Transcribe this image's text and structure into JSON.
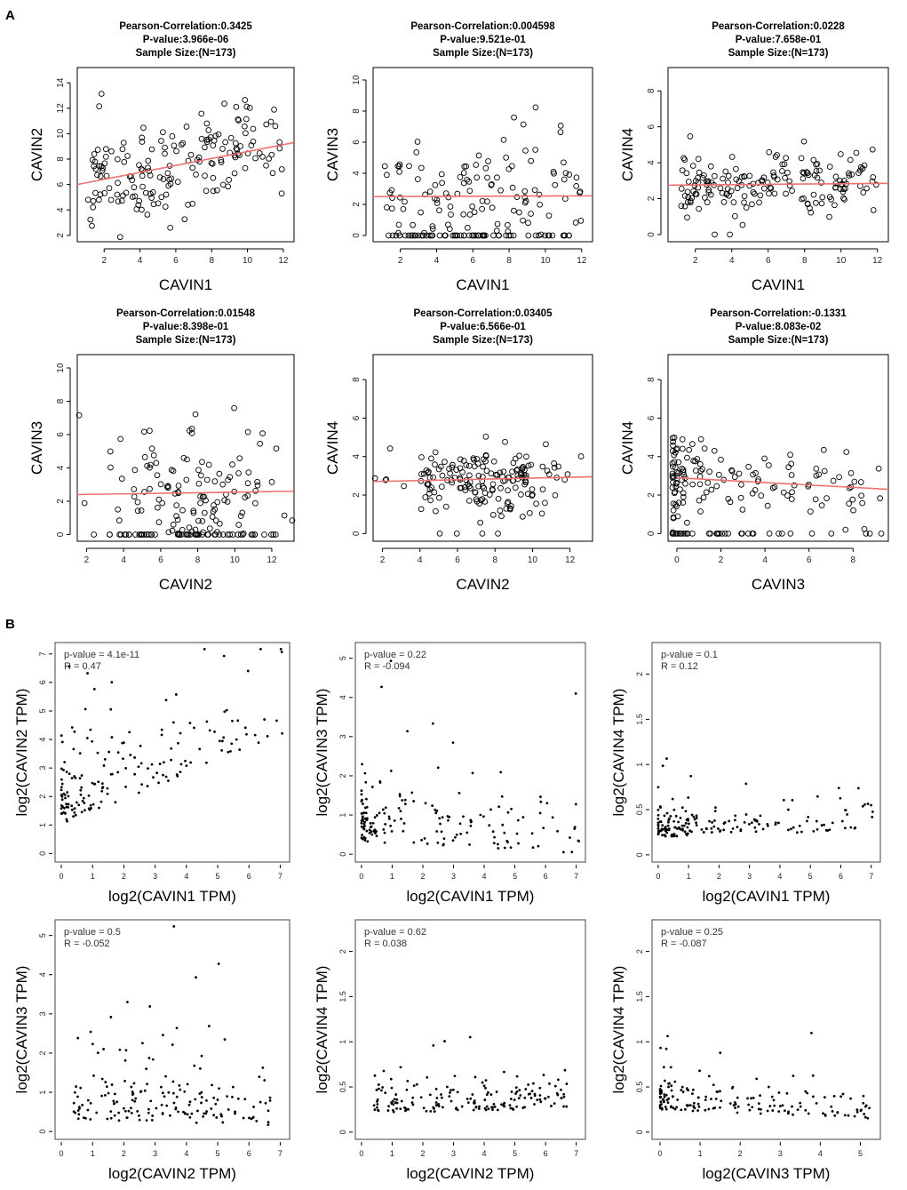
{
  "panel_labels": {
    "a": "A",
    "b": "B"
  },
  "colors": {
    "fit_line": "#f07070",
    "ink": "#000000",
    "box": "#444444"
  },
  "chart_data": [
    {
      "type": "scatter",
      "panel": "A",
      "style": "r-base",
      "header": [
        "Pearson-Correlation:0.3425",
        "P-value:3.966e-06",
        "Sample Size:(N=173)"
      ],
      "xlabel": "CAVIN1",
      "ylabel": "CAVIN2",
      "xlim": [
        0.5,
        12.6
      ],
      "ylim": [
        1.5,
        15.2
      ],
      "xticks": [
        2,
        4,
        6,
        8,
        10,
        12
      ],
      "yticks": [
        2,
        4,
        6,
        8,
        10,
        12,
        14
      ],
      "n_points": 173,
      "seed": 11,
      "slope": 0.27,
      "spread": 1.9,
      "zero_frac": 0,
      "xmode": "uniform",
      "fit": {
        "x0": 0.5,
        "y0": 6.0,
        "x1": 12.6,
        "y1": 9.3
      },
      "grid": false
    },
    {
      "type": "scatter",
      "panel": "A",
      "style": "r-base",
      "header": [
        "Pearson-Correlation:0.004598",
        "P-value:9.521e-01",
        "Sample Size:(N=173)"
      ],
      "xlabel": "CAVIN1",
      "ylabel": "CAVIN3",
      "xlim": [
        0.5,
        12.6
      ],
      "ylim": [
        -0.4,
        10.8
      ],
      "xticks": [
        2,
        4,
        6,
        8,
        10,
        12
      ],
      "yticks": [
        0,
        2,
        4,
        6,
        8,
        10
      ],
      "n_points": 173,
      "seed": 23,
      "slope": 0.0,
      "spread": 2.2,
      "zero_frac": 0.18,
      "xmode": "uniform",
      "fit": {
        "x0": 0.5,
        "y0": 2.5,
        "x1": 12.6,
        "y1": 2.55
      },
      "grid": false
    },
    {
      "type": "scatter",
      "panel": "A",
      "style": "r-base",
      "header": [
        "Pearson-Correlation:0.0228",
        "P-value:7.658e-01",
        "Sample Size:(N=173)"
      ],
      "xlabel": "CAVIN1",
      "ylabel": "CAVIN4",
      "xlim": [
        0.5,
        12.6
      ],
      "ylim": [
        -0.4,
        9.3
      ],
      "xticks": [
        2,
        4,
        6,
        8,
        10,
        12
      ],
      "yticks": [
        0,
        2,
        4,
        6,
        8
      ],
      "n_points": 173,
      "seed": 37,
      "slope": 0.01,
      "spread": 0.9,
      "zero_frac": 0.02,
      "xmode": "uniform",
      "fit": {
        "x0": 0.5,
        "y0": 2.75,
        "x1": 12.6,
        "y1": 2.85
      },
      "grid": false
    },
    {
      "type": "scatter",
      "panel": "A",
      "style": "r-base",
      "header": [
        "Pearson-Correlation:0.01548",
        "P-value:8.398e-01",
        "Sample Size:(N=173)"
      ],
      "xlabel": "CAVIN2",
      "ylabel": "CAVIN3",
      "xlim": [
        1.5,
        13.2
      ],
      "ylim": [
        -0.4,
        10.8
      ],
      "xticks": [
        2,
        4,
        6,
        8,
        10,
        12
      ],
      "yticks": [
        0,
        2,
        4,
        6,
        8,
        10
      ],
      "n_points": 173,
      "seed": 41,
      "slope": 0.01,
      "spread": 2.2,
      "zero_frac": 0.18,
      "xmode": "centered",
      "fit": {
        "x0": 1.5,
        "y0": 2.4,
        "x1": 13.2,
        "y1": 2.6
      },
      "grid": false
    },
    {
      "type": "scatter",
      "panel": "A",
      "style": "r-base",
      "header": [
        "Pearson-Correlation:0.03405",
        "P-value:6.566e-01",
        "Sample Size:(N=173)"
      ],
      "xlabel": "CAVIN2",
      "ylabel": "CAVIN4",
      "xlim": [
        1.5,
        13.2
      ],
      "ylim": [
        -0.4,
        9.3
      ],
      "xticks": [
        2,
        4,
        6,
        8,
        10,
        12
      ],
      "yticks": [
        0,
        2,
        4,
        6,
        8
      ],
      "n_points": 173,
      "seed": 53,
      "slope": 0.02,
      "spread": 0.9,
      "zero_frac": 0.02,
      "xmode": "centered",
      "fit": {
        "x0": 1.5,
        "y0": 2.7,
        "x1": 13.2,
        "y1": 2.95
      },
      "grid": false
    },
    {
      "type": "scatter",
      "panel": "A",
      "style": "r-base",
      "header": [
        "Pearson-Correlation:-0.1331",
        "P-value:8.083e-02",
        "Sample Size:(N=173)"
      ],
      "xlabel": "CAVIN3",
      "ylabel": "CAVIN4",
      "xlim": [
        -0.4,
        9.6
      ],
      "ylim": [
        -0.4,
        9.3
      ],
      "xticks": [
        0,
        2,
        4,
        6,
        8
      ],
      "yticks": [
        0,
        2,
        4,
        6,
        8
      ],
      "n_points": 173,
      "seed": 67,
      "slope": -0.07,
      "spread": 0.9,
      "zero_frac": 0.2,
      "xmode": "skewed",
      "fit": {
        "x0": 0.0,
        "y0": 2.9,
        "x1": 9.6,
        "y1": 2.3
      },
      "grid": false
    },
    {
      "type": "scatter",
      "panel": "B",
      "style": "gepia",
      "annotation": [
        "p-value = 4.1e-11",
        "R = 0.47"
      ],
      "xlabel": "log2(CAVIN1 TPM)",
      "ylabel": "log2(CAVIN2 TPM)",
      "xlim": [
        -0.2,
        7.3
      ],
      "ylim": [
        -0.3,
        7.4
      ],
      "xticks": [
        0,
        1,
        2,
        3,
        4,
        5,
        6,
        7
      ],
      "yticks": [
        0,
        1,
        2,
        3,
        4,
        5,
        6,
        7
      ],
      "n_points": 173,
      "seed": 101,
      "slope": 0.45,
      "spread": 1.2,
      "zero_frac": 0,
      "xmode": "skewed",
      "base": 1.0,
      "grid": false
    },
    {
      "type": "scatter",
      "panel": "B",
      "style": "gepia",
      "annotation": [
        "p-value = 0.22",
        "R = -0.094"
      ],
      "xlabel": "log2(CAVIN1 TPM)",
      "ylabel": "log2(CAVIN3 TPM)",
      "xlim": [
        -0.2,
        7.3
      ],
      "ylim": [
        -0.2,
        5.4
      ],
      "xticks": [
        0,
        1,
        2,
        3,
        4,
        5,
        6,
        7
      ],
      "yticks": [
        0,
        1,
        2,
        3,
        4,
        5
      ],
      "n_points": 173,
      "seed": 113,
      "slope": -0.04,
      "spread": 0.7,
      "zero_frac": 0,
      "xmode": "skewed",
      "base": 0.3,
      "grid": false
    },
    {
      "type": "scatter",
      "panel": "B",
      "style": "gepia",
      "annotation": [
        "p-value = 0.1",
        "R = 0.12"
      ],
      "xlabel": "log2(CAVIN1 TPM)",
      "ylabel": "log2(CAVIN4 TPM)",
      "xlim": [
        -0.2,
        7.3
      ],
      "ylim": [
        -0.08,
        2.35
      ],
      "xticks": [
        0,
        1,
        2,
        3,
        4,
        5,
        6,
        7
      ],
      "yticks": [
        0.0,
        0.5,
        1.0,
        1.5,
        2.0
      ],
      "n_points": 173,
      "seed": 127,
      "slope": 0.01,
      "spread": 0.15,
      "zero_frac": 0,
      "xmode": "skewed",
      "base": 0.2,
      "grid": false
    },
    {
      "type": "scatter",
      "panel": "B",
      "style": "gepia",
      "annotation": [
        "p-value = 0.5",
        "R = -0.052"
      ],
      "xlabel": "log2(CAVIN2 TPM)",
      "ylabel": "log2(CAVIN3 TPM)",
      "xlim": [
        -0.2,
        7.3
      ],
      "ylim": [
        -0.2,
        5.4
      ],
      "xticks": [
        0,
        1,
        2,
        3,
        4,
        5,
        6,
        7
      ],
      "yticks": [
        0,
        1,
        2,
        3,
        4,
        5
      ],
      "n_points": 173,
      "seed": 139,
      "slope": -0.02,
      "spread": 0.7,
      "zero_frac": 0,
      "xmode": "uniform",
      "base": 0.3,
      "grid": false
    },
    {
      "type": "scatter",
      "panel": "B",
      "style": "gepia",
      "annotation": [
        "p-value = 0.62",
        "R = 0.038"
      ],
      "xlabel": "log2(CAVIN2 TPM)",
      "ylabel": "log2(CAVIN4 TPM)",
      "xlim": [
        -0.2,
        7.3
      ],
      "ylim": [
        -0.08,
        2.35
      ],
      "xticks": [
        0,
        1,
        2,
        3,
        4,
        5,
        6,
        7
      ],
      "yticks": [
        0.0,
        0.5,
        1.0,
        1.5,
        2.0
      ],
      "n_points": 173,
      "seed": 151,
      "slope": 0.01,
      "spread": 0.15,
      "zero_frac": 0,
      "xmode": "uniform",
      "base": 0.2,
      "grid": false
    },
    {
      "type": "scatter",
      "panel": "B",
      "style": "gepia",
      "annotation": [
        "p-value = 0.25",
        "R = -0.087"
      ],
      "xlabel": "log2(CAVIN3 TPM)",
      "ylabel": "log2(CAVIN4 TPM)",
      "xlim": [
        -0.2,
        5.5
      ],
      "ylim": [
        -0.08,
        2.35
      ],
      "xticks": [
        0,
        1,
        2,
        3,
        4,
        5
      ],
      "yticks": [
        0.0,
        0.5,
        1.0,
        1.5,
        2.0
      ],
      "n_points": 173,
      "seed": 163,
      "slope": -0.02,
      "spread": 0.15,
      "zero_frac": 0,
      "xmode": "skewed",
      "base": 0.25,
      "grid": false
    }
  ]
}
